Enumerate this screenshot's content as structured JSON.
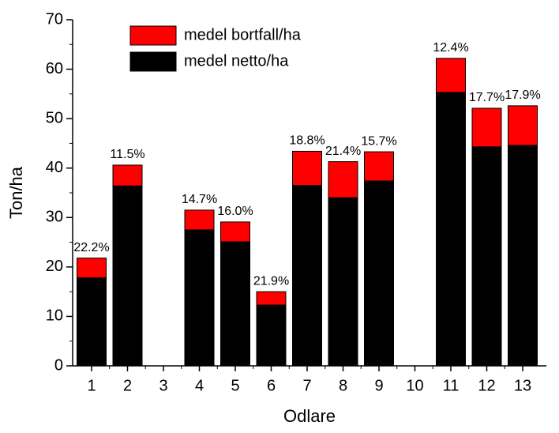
{
  "chart_data": {
    "type": "stacked_bar",
    "x_label": "Odlare",
    "y_label": "Ton/ha",
    "categories": [
      "1",
      "2",
      "3",
      "4",
      "5",
      "6",
      "7",
      "8",
      "9",
      "10",
      "11",
      "12",
      "13"
    ],
    "series": [
      {
        "name": "medel netto/ha",
        "color": "#000000",
        "values": [
          17.8,
          36.4,
          null,
          27.5,
          25.1,
          12.3,
          36.5,
          34.0,
          37.4,
          null,
          55.3,
          44.3,
          44.6
        ]
      },
      {
        "name": "medel bortfall/ha",
        "color": "#ff0000",
        "values": [
          4.0,
          4.2,
          null,
          4.0,
          4.0,
          2.7,
          6.9,
          7.3,
          5.9,
          null,
          6.9,
          7.8,
          8.0
        ]
      }
    ],
    "annotations": [
      "22.2%",
      "11.5%",
      null,
      "14.7%",
      "16.0%",
      "21.9%",
      "18.8%",
      "21.4%",
      "15.7%",
      null,
      "12.4%",
      "17.7%",
      "17.9%"
    ],
    "ylim": [
      0,
      70
    ],
    "yticks": [
      0,
      10,
      20,
      30,
      40,
      50,
      60,
      70
    ],
    "grid": false,
    "legend": "top"
  }
}
